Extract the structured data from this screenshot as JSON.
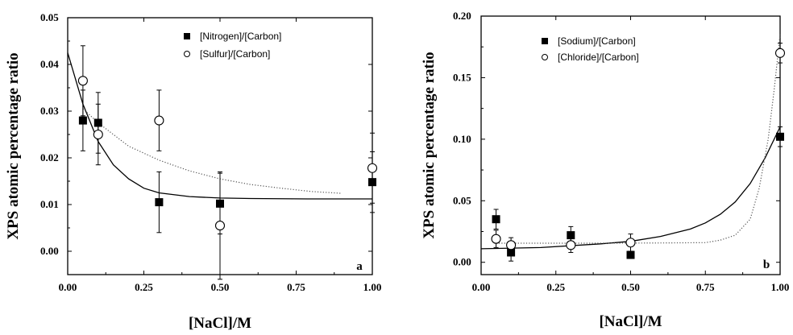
{
  "chart_data": [
    {
      "type": "scatter",
      "panel_label": "a",
      "xlabel": "[NaCl]/M",
      "ylabel": "XPS atomic percentage ratio",
      "xlim": [
        0.0,
        1.0
      ],
      "ylim": [
        -0.005,
        0.05
      ],
      "xticks": [
        "0.00",
        "0.25",
        "0.50",
        "0.75",
        "1.00"
      ],
      "xtick_values": [
        0.0,
        0.25,
        0.5,
        0.75,
        1.0
      ],
      "yticks": [
        "0.00",
        "0.01",
        "0.02",
        "0.03",
        "0.04",
        "0.05"
      ],
      "ytick_values": [
        0.0,
        0.01,
        0.02,
        0.03,
        0.04,
        0.05
      ],
      "legend_position": "top-right",
      "series": [
        {
          "name": "[Nitrogen]/[Carbon]",
          "marker": "filled-square",
          "line": "solid",
          "x": [
            0.05,
            0.1,
            0.3,
            0.5,
            1.0
          ],
          "y": [
            0.028,
            0.0275,
            0.0105,
            0.0102,
            0.0148
          ],
          "err": [
            0.0065,
            0.0065,
            0.0065,
            0.0065,
            0.0065
          ],
          "fit_x": [
            0.0,
            0.05,
            0.1,
            0.15,
            0.2,
            0.25,
            0.3,
            0.4,
            0.5,
            0.6,
            0.8,
            1.0
          ],
          "fit_y": [
            0.0425,
            0.0315,
            0.0235,
            0.0185,
            0.0155,
            0.0135,
            0.0125,
            0.0117,
            0.0114,
            0.0113,
            0.0112,
            0.0112
          ]
        },
        {
          "name": "[Sulfur]/[Carbon]",
          "marker": "open-circle",
          "line": "dotted",
          "x": [
            0.05,
            0.1,
            0.3,
            0.5,
            1.0
          ],
          "y": [
            0.0365,
            0.025,
            0.028,
            0.0055,
            0.0178
          ],
          "err": [
            0.0075,
            0.0065,
            0.0065,
            0.0115,
            0.0075
          ],
          "fit_x": [
            0.05,
            0.1,
            0.15,
            0.2,
            0.3,
            0.4,
            0.5,
            0.6,
            0.7,
            0.8,
            0.9
          ],
          "fit_y": [
            0.0305,
            0.0275,
            0.025,
            0.0225,
            0.0195,
            0.0172,
            0.0155,
            0.0143,
            0.0135,
            0.0128,
            0.0124
          ]
        }
      ]
    },
    {
      "type": "scatter",
      "panel_label": "b",
      "xlabel": "[NaCl]/M",
      "ylabel": "XPS atomic percentage ratio",
      "xlim": [
        0.0,
        1.0
      ],
      "ylim": [
        -0.01,
        0.2
      ],
      "xticks": [
        "0.00",
        "0.25",
        "0.50",
        "0.75",
        "1.00"
      ],
      "xtick_values": [
        0.0,
        0.25,
        0.5,
        0.75,
        1.0
      ],
      "yticks": [
        "0.00",
        "0.05",
        "0.10",
        "0.15",
        "0.20"
      ],
      "ytick_values": [
        0.0,
        0.05,
        0.1,
        0.15,
        0.2
      ],
      "legend_position": "top-left",
      "series": [
        {
          "name": "[Sodium]/[Carbon]",
          "marker": "filled-square",
          "line": "solid",
          "x": [
            0.05,
            0.1,
            0.3,
            0.5,
            1.0
          ],
          "y": [
            0.035,
            0.008,
            0.022,
            0.006,
            0.102
          ],
          "err": [
            0.008,
            0.007,
            0.007,
            0.0,
            0.008
          ],
          "fit_x": [
            0.0,
            0.2,
            0.4,
            0.5,
            0.6,
            0.7,
            0.75,
            0.8,
            0.85,
            0.9,
            0.95,
            1.0
          ],
          "fit_y": [
            0.011,
            0.012,
            0.015,
            0.017,
            0.021,
            0.027,
            0.032,
            0.039,
            0.049,
            0.064,
            0.085,
            0.11
          ]
        },
        {
          "name": "[Chloride]/[Carbon]",
          "marker": "open-circle",
          "line": "dotted",
          "x": [
            0.05,
            0.1,
            0.3,
            0.5,
            1.0
          ],
          "y": [
            0.019,
            0.014,
            0.014,
            0.016,
            0.17
          ],
          "err": [
            0.007,
            0.006,
            0.006,
            0.007,
            0.008
          ],
          "fit_x": [
            0.05,
            0.2,
            0.4,
            0.6,
            0.75,
            0.8,
            0.85,
            0.9,
            0.93,
            0.96,
            0.98,
            1.0
          ],
          "fit_y": [
            0.0155,
            0.0155,
            0.0155,
            0.0157,
            0.016,
            0.018,
            0.022,
            0.035,
            0.06,
            0.1,
            0.14,
            0.185
          ]
        }
      ]
    }
  ]
}
